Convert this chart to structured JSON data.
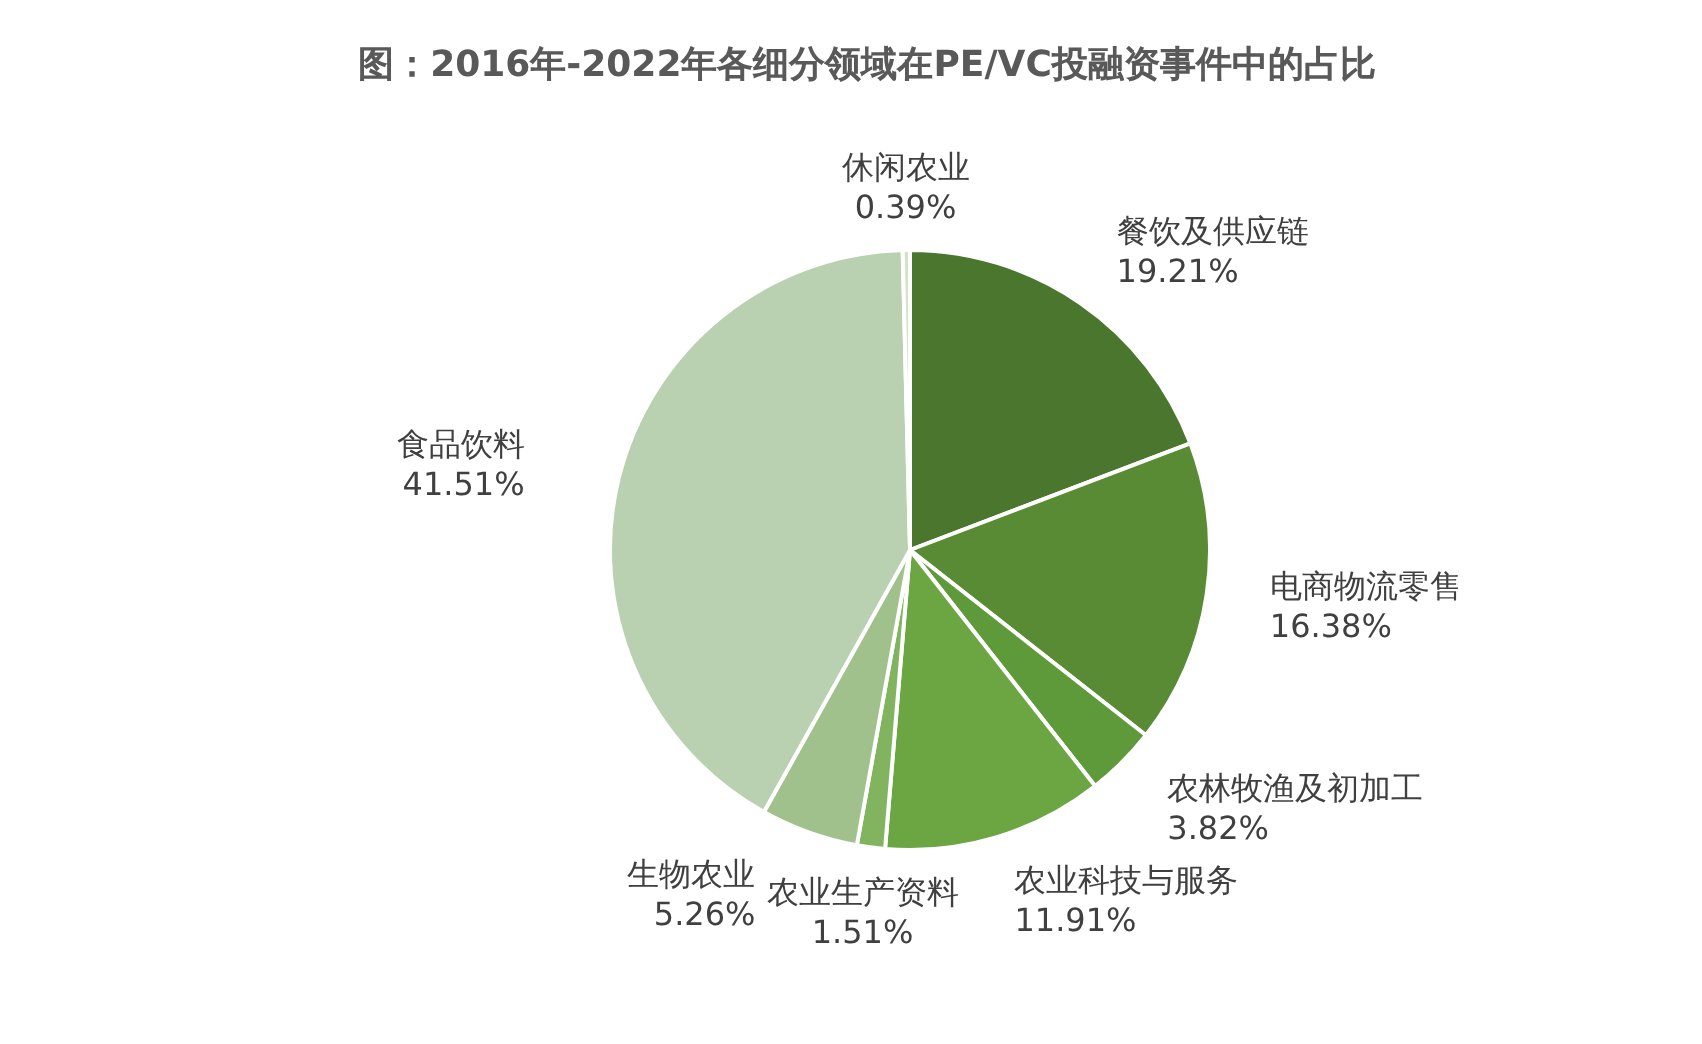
{
  "chart_data": {
    "type": "pie",
    "title": "图：2016年-2022年各细分领域在PE/VC投融资事件中的占比",
    "categories": [
      "餐饮及供应链",
      "电商物流零售",
      "农林牧渔及初加工",
      "农业科技与服务",
      "农业生产资料",
      "生物农业",
      "食品饮料",
      "休闲农业"
    ],
    "values": [
      19.21,
      16.38,
      3.82,
      11.91,
      1.51,
      5.26,
      41.51,
      0.39
    ],
    "colors": [
      "#4a772d",
      "#588b34",
      "#5f9a3a",
      "#6ba643",
      "#82b35f",
      "#a1c18c",
      "#b9d0b1",
      "#d3e2cb"
    ],
    "value_labels": [
      "19.21%",
      "16.38%",
      "3.82%",
      "11.91%",
      "1.51%",
      "5.26%",
      "41.51%",
      "0.39%"
    ]
  }
}
